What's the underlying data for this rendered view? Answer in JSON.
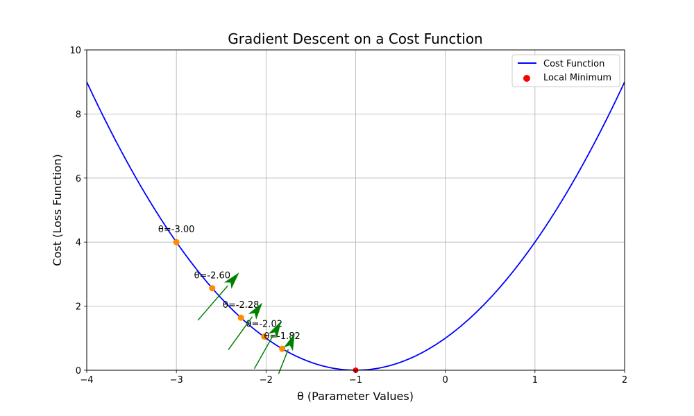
{
  "chart_data": {
    "type": "line",
    "title": "Gradient Descent on a Cost Function",
    "xlabel": "θ (Parameter Values)",
    "ylabel": "Cost (Loss Function)",
    "xlim": [
      -4,
      2
    ],
    "ylim": [
      0,
      10
    ],
    "xticks": [
      -4,
      -3,
      -2,
      -1,
      0,
      1,
      2
    ],
    "yticks": [
      0,
      2,
      4,
      6,
      8,
      10
    ],
    "grid": true,
    "legend_position": "top-right",
    "colors": {
      "curve": "#0000ff",
      "minimum": "#ff0000",
      "steps": "#ff8c00",
      "arrows": "#008000",
      "grid": "#b0b0b0"
    },
    "series": [
      {
        "name": "Cost Function",
        "type": "line",
        "function": "(theta + 1)^2",
        "x_range": [
          -4,
          2
        ]
      },
      {
        "name": "Local Minimum",
        "type": "scatter",
        "points": [
          {
            "x": -1,
            "y": 0
          }
        ]
      }
    ],
    "steps": [
      {
        "x": -3.0,
        "y": 4.0,
        "label": "θ=-3.00"
      },
      {
        "x": -2.6,
        "y": 2.56,
        "label": "θ=-2.60"
      },
      {
        "x": -2.28,
        "y": 1.64,
        "label": "θ=-2.28"
      },
      {
        "x": -2.02,
        "y": 1.05,
        "label": "θ=-2.02"
      },
      {
        "x": -1.82,
        "y": 0.67,
        "label": "θ=-1.82"
      }
    ],
    "gradient_arrows": [
      {
        "from": [
          -2.76,
          1.56
        ],
        "to": [
          -2.3,
          3.05
        ]
      },
      {
        "from": [
          -2.42,
          0.64
        ],
        "to": [
          -2.04,
          2.11
        ]
      },
      {
        "from": [
          -2.13,
          0.05
        ],
        "to": [
          -1.83,
          1.54
        ]
      },
      {
        "from": [
          -1.86,
          -0.11
        ],
        "to": [
          -1.68,
          1.16
        ]
      }
    ]
  }
}
